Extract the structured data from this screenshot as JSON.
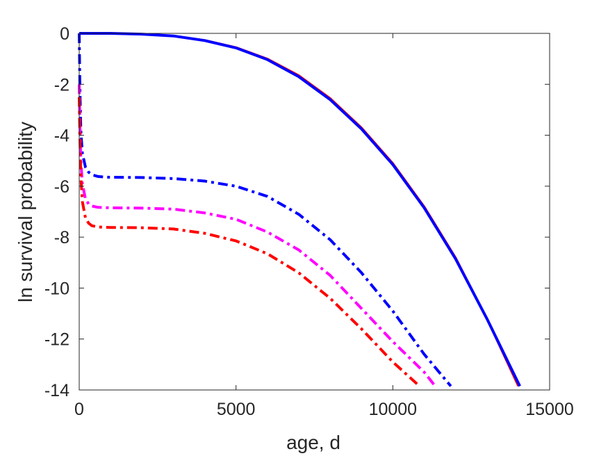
{
  "chart_data": {
    "type": "line",
    "title": "",
    "xlabel": "age, d",
    "ylabel": "ln survival probability",
    "xlim": [
      0,
      15000
    ],
    "ylim": [
      -14,
      0
    ],
    "xticks": [
      0,
      5000,
      10000,
      15000
    ],
    "xtick_labels": [
      "0",
      "5000",
      "10000",
      "15000"
    ],
    "yticks": [
      0,
      -2,
      -4,
      -6,
      -8,
      -10,
      -12,
      -14
    ],
    "ytick_labels": [
      "0",
      "-2",
      "-4",
      "-6",
      "-8",
      "-10",
      "-12",
      "-14"
    ],
    "grid": false,
    "legend": "none",
    "series": [
      {
        "color": "#ff0000",
        "style": "solid",
        "x": [
          0,
          1000,
          2000,
          3000,
          4000,
          5000,
          6000,
          7000,
          8000,
          9000,
          10000,
          11000,
          12000,
          13000,
          14000
        ],
        "y": [
          0,
          0,
          -0.03,
          -0.1,
          -0.27,
          -0.55,
          -1.0,
          -1.65,
          -2.55,
          -3.7,
          -5.1,
          -6.8,
          -8.8,
          -11.2,
          -13.85
        ]
      },
      {
        "color": "#0000ff",
        "style": "solid",
        "x": [
          0,
          1000,
          2000,
          3000,
          4000,
          5000,
          6000,
          7000,
          8000,
          9000,
          10000,
          11000,
          12000,
          13000,
          14050
        ],
        "y": [
          0,
          0,
          -0.03,
          -0.1,
          -0.28,
          -0.57,
          -1.03,
          -1.7,
          -2.6,
          -3.75,
          -5.15,
          -6.85,
          -8.85,
          -11.2,
          -13.85
        ]
      },
      {
        "color": "#0000ff",
        "style": "dashdot",
        "x": [
          0,
          20,
          50,
          100,
          200,
          300,
          400,
          600,
          800,
          1000,
          2000,
          3000,
          4000,
          5000,
          6000,
          7000,
          8000,
          9000,
          10000,
          11000,
          11850
        ],
        "y": [
          0,
          -2.0,
          -3.8,
          -4.7,
          -5.25,
          -5.45,
          -5.55,
          -5.62,
          -5.64,
          -5.65,
          -5.66,
          -5.7,
          -5.8,
          -6.0,
          -6.4,
          -7.1,
          -8.1,
          -9.4,
          -10.9,
          -12.6,
          -13.85
        ]
      },
      {
        "color": "#ff00ff",
        "style": "dashdot",
        "x": [
          0,
          20,
          50,
          100,
          200,
          300,
          400,
          600,
          800,
          1000,
          2000,
          3000,
          4000,
          5000,
          6000,
          7000,
          8000,
          9000,
          10000,
          11000,
          11350
        ],
        "y": [
          -2.0,
          -3.5,
          -5.0,
          -5.9,
          -6.5,
          -6.7,
          -6.78,
          -6.83,
          -6.84,
          -6.85,
          -6.86,
          -6.9,
          -7.05,
          -7.3,
          -7.8,
          -8.5,
          -9.5,
          -10.8,
          -12.1,
          -13.3,
          -13.85
        ]
      },
      {
        "color": "#ff0000",
        "style": "dashdot",
        "x": [
          0,
          20,
          50,
          100,
          200,
          300,
          400,
          600,
          800,
          1000,
          2000,
          3000,
          4000,
          5000,
          6000,
          7000,
          8000,
          9000,
          10000,
          10850
        ],
        "y": [
          -2.5,
          -4.0,
          -5.6,
          -6.6,
          -7.25,
          -7.45,
          -7.55,
          -7.6,
          -7.61,
          -7.62,
          -7.63,
          -7.68,
          -7.85,
          -8.15,
          -8.65,
          -9.4,
          -10.4,
          -11.6,
          -12.9,
          -13.85
        ]
      }
    ]
  }
}
